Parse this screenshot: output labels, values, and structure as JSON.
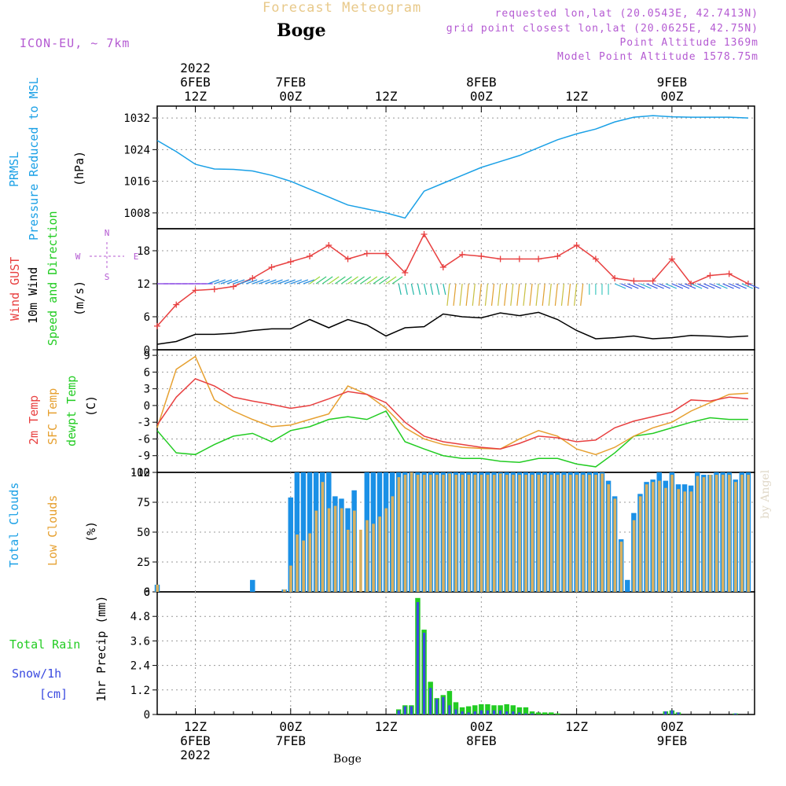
{
  "header": {
    "title": "Forecast Meteogram",
    "station": "Boge",
    "model": "ICON-EU, ~ 7km",
    "requested": "requested lon,lat (20.0543E, 42.7413N)",
    "gridpoint": "grid point closest lon,lat (20.0625E, 42.75N)",
    "point_alt": "Point Altitude 1369m",
    "model_alt": "Model Point Altitude 1578.75m",
    "credit": "by Angel",
    "footer": "Boge"
  },
  "colors": {
    "pressure": "#1aa0e6",
    "gust": "#e84040",
    "wind": "#000000",
    "green": "#22cc22",
    "orange": "#e6a030",
    "total_clouds": "#1a90e6",
    "low_clouds": "#d8b060",
    "snow": "#3a4ae0",
    "purple": "#b45ad2",
    "grid": "#999999"
  },
  "chart_data": [
    {
      "type": "line",
      "id": "pressure",
      "ylabels": [
        "PRMSL",
        "Pressure Reduced to MSL",
        "(hPa)"
      ],
      "yticks": [
        1008,
        1016,
        1024,
        1032
      ],
      "ylim": [
        1004,
        1035
      ],
      "x_hours": [
        0,
        3,
        6,
        9,
        12,
        15,
        18,
        21,
        24,
        27,
        30,
        33,
        36,
        39,
        42,
        45,
        48,
        51,
        54,
        57,
        60,
        63,
        66,
        69,
        72,
        75,
        78,
        81,
        84,
        87,
        90,
        93
      ],
      "series": [
        {
          "values": [
            1026.3,
            1023.5,
            1020.3,
            1019.1,
            1019.0,
            1018.6,
            1017.5,
            1016.0,
            1014.0,
            1012.0,
            1010.0,
            1009.0,
            1008.0,
            1006.7,
            1013.5,
            1015.5,
            1017.5,
            1019.5,
            1021.0,
            1022.5,
            1024.5,
            1026.5,
            1028.0,
            1029.2,
            1031.0,
            1032.2,
            1032.6,
            1032.3,
            1032.2,
            1032.2,
            1032.2,
            1032.0
          ]
        }
      ]
    },
    {
      "type": "line",
      "id": "wind",
      "ylabels": [
        "Wind GUST",
        "10m Wind",
        "Speed and Direction",
        "(m/s)"
      ],
      "compass": {
        "n": "N",
        "s": "S",
        "w": "W",
        "e": "E"
      },
      "yticks": [
        0,
        6,
        12,
        18
      ],
      "ylim": [
        0,
        22
      ],
      "x_hours": [
        0,
        3,
        6,
        9,
        12,
        15,
        18,
        21,
        24,
        27,
        30,
        33,
        36,
        39,
        42,
        45,
        48,
        51,
        54,
        57,
        60,
        63,
        66,
        69,
        72,
        75,
        78,
        81,
        84,
        87,
        90,
        93
      ],
      "series": [
        {
          "name": "Wind GUST",
          "values": [
            4.3,
            8.2,
            10.8,
            11.0,
            11.5,
            13.0,
            15.0,
            16.0,
            17.0,
            19.0,
            16.5,
            17.5,
            17.5,
            14.0,
            21.0,
            15.0,
            17.3,
            17.0,
            16.5,
            16.5,
            16.5,
            17.0,
            19.0,
            16.5,
            13.0,
            12.5,
            12.5,
            16.5,
            12.0,
            13.5,
            13.8,
            12.0
          ]
        },
        {
          "name": "10m Wind",
          "values": [
            1.0,
            1.5,
            2.8,
            2.8,
            3.0,
            3.5,
            3.8,
            3.8,
            5.5,
            4.0,
            5.5,
            4.5,
            2.5,
            4.0,
            4.2,
            6.5,
            6.0,
            5.8,
            6.7,
            6.2,
            6.8,
            5.5,
            3.5,
            2.0,
            2.2,
            2.5,
            2.0,
            2.2,
            2.6,
            2.5,
            2.3,
            2.5
          ]
        }
      ]
    },
    {
      "type": "line",
      "id": "temperature",
      "ylabels": [
        "2m Temp",
        "SFC Temp",
        "dewpt Temp",
        "(C)"
      ],
      "yticks": [
        -12,
        -9,
        -6,
        -3,
        0,
        3,
        6,
        9
      ],
      "ylim": [
        -12,
        10
      ],
      "x_hours": [
        0,
        3,
        6,
        9,
        12,
        15,
        18,
        21,
        24,
        27,
        30,
        33,
        36,
        39,
        42,
        45,
        48,
        51,
        54,
        57,
        60,
        63,
        66,
        69,
        72,
        75,
        78,
        81,
        84,
        87,
        90,
        93
      ],
      "series": [
        {
          "name": "2m Temp",
          "values": [
            -3.5,
            1.5,
            4.8,
            3.5,
            1.5,
            0.8,
            0.2,
            -0.5,
            0.0,
            1.2,
            2.5,
            2.0,
            0.5,
            -3.0,
            -5.5,
            -6.5,
            -7.0,
            -7.5,
            -7.8,
            -6.8,
            -5.5,
            -5.8,
            -6.5,
            -6.2,
            -4.0,
            -2.8,
            -2.0,
            -1.2,
            1.0,
            0.8,
            1.5,
            1.2
          ]
        },
        {
          "name": "SFC Temp",
          "values": [
            -4.0,
            6.5,
            8.8,
            1.0,
            -1.0,
            -2.5,
            -3.8,
            -3.5,
            -2.5,
            -1.5,
            3.5,
            2.0,
            -0.5,
            -4.0,
            -6.0,
            -7.0,
            -7.5,
            -7.7,
            -7.8,
            -6.0,
            -4.5,
            -5.5,
            -7.8,
            -8.8,
            -7.5,
            -5.5,
            -4.0,
            -3.0,
            -1.0,
            0.5,
            2.0,
            2.2
          ]
        },
        {
          "name": "dewpt Temp",
          "values": [
            -4.5,
            -8.5,
            -8.8,
            -7.0,
            -5.5,
            -5.0,
            -6.5,
            -4.5,
            -3.8,
            -2.5,
            -2.0,
            -2.5,
            -1.0,
            -6.5,
            -7.8,
            -9.0,
            -9.5,
            -9.5,
            -10.0,
            -10.2,
            -9.5,
            -9.5,
            -10.5,
            -11.0,
            -8.5,
            -5.5,
            -5.0,
            -4.0,
            -3.0,
            -2.2,
            -2.5,
            -2.5
          ]
        }
      ]
    },
    {
      "type": "bar",
      "id": "clouds",
      "ylabels": [
        "Total Clouds",
        "Low Clouds",
        "(%)"
      ],
      "yticks": [
        0,
        25,
        50,
        75,
        100
      ],
      "ylim": [
        0,
        100
      ],
      "x_hours": [
        0,
        1,
        2,
        3,
        4,
        5,
        6,
        7,
        8,
        9,
        10,
        11,
        12,
        13,
        14,
        15,
        16,
        17,
        18,
        19,
        20,
        21,
        22,
        23,
        24,
        25,
        26,
        27,
        28,
        29,
        30,
        31,
        32,
        33,
        34,
        35,
        36,
        37,
        38,
        39,
        40,
        41,
        42,
        43,
        44,
        45,
        46,
        47,
        48,
        49,
        50,
        51,
        52,
        53,
        54,
        55,
        56,
        57,
        58,
        59,
        60,
        61,
        62,
        63,
        64,
        65,
        66,
        67,
        68,
        69,
        70,
        71,
        72,
        73,
        74,
        75,
        76,
        77,
        78,
        79,
        80,
        81,
        82,
        83,
        84,
        85,
        86,
        87,
        88,
        89,
        90,
        91,
        92,
        93
      ],
      "series": [
        {
          "name": "Total Clouds",
          "values": [
            6,
            0,
            0,
            0,
            0,
            0,
            0,
            0,
            0,
            0,
            0,
            0,
            0,
            0,
            0,
            10,
            0,
            0,
            0,
            0,
            2,
            79,
            100,
            100,
            100,
            100,
            100,
            100,
            80,
            78,
            70,
            85,
            0,
            100,
            100,
            100,
            100,
            100,
            100,
            100,
            100,
            100,
            100,
            100,
            100,
            100,
            100,
            100,
            100,
            100,
            100,
            100,
            100,
            100,
            100,
            100,
            100,
            100,
            100,
            100,
            100,
            100,
            100,
            100,
            100,
            100,
            100,
            100,
            100,
            100,
            100,
            93,
            80,
            44,
            10,
            66,
            82,
            92,
            94,
            100,
            93,
            100,
            90,
            90,
            89,
            100,
            98,
            98,
            100,
            100,
            100,
            94,
            100,
            100
          ]
        },
        {
          "name": "Low Clouds",
          "values": [
            6,
            0,
            0,
            0,
            0,
            0,
            0,
            0,
            0,
            0,
            0,
            0,
            0,
            0,
            0,
            0,
            0,
            0,
            0,
            0,
            2,
            22,
            48,
            43,
            49,
            68,
            92,
            70,
            72,
            70,
            52,
            68,
            52,
            60,
            57,
            63,
            70,
            80,
            96,
            98,
            100,
            98,
            98,
            98,
            98,
            98,
            99,
            98,
            98,
            98,
            98,
            98,
            98,
            98,
            99,
            98,
            98,
            98,
            98,
            98,
            98,
            98,
            98,
            98,
            98,
            98,
            98,
            98,
            98,
            98,
            99,
            90,
            78,
            42,
            0,
            60,
            80,
            90,
            92,
            93,
            87,
            98,
            86,
            84,
            84,
            97,
            96,
            98,
            98,
            98,
            98,
            92,
            98,
            98
          ]
        }
      ]
    },
    {
      "type": "bar",
      "id": "precip",
      "ylabels": [
        "Total  Rain",
        "Snow/1h",
        "[cm]",
        "1hr Precip (mm)"
      ],
      "yticks": [
        0,
        1.2,
        2.4,
        3.6,
        4.8,
        6
      ],
      "ylim": [
        0,
        6
      ],
      "x_hours": [
        0,
        1,
        2,
        3,
        4,
        5,
        6,
        7,
        8,
        9,
        10,
        11,
        12,
        13,
        14,
        15,
        16,
        17,
        18,
        19,
        20,
        21,
        22,
        23,
        24,
        25,
        26,
        27,
        28,
        29,
        30,
        31,
        32,
        33,
        34,
        35,
        36,
        37,
        38,
        39,
        40,
        41,
        42,
        43,
        44,
        45,
        46,
        47,
        48,
        49,
        50,
        51,
        52,
        53,
        54,
        55,
        56,
        57,
        58,
        59,
        60,
        61,
        62,
        63,
        64,
        65,
        66,
        67,
        68,
        69,
        70,
        71,
        72,
        73,
        74,
        75,
        76,
        77,
        78,
        79,
        80,
        81,
        82,
        83,
        84,
        85,
        86,
        87,
        88,
        89,
        90,
        91,
        92,
        93
      ],
      "series": [
        {
          "name": "Total Rain",
          "values": [
            0,
            0,
            0,
            0,
            0,
            0,
            0,
            0,
            0,
            0,
            0,
            0,
            0,
            0,
            0,
            0,
            0,
            0,
            0,
            0,
            0,
            0,
            0,
            0,
            0,
            0,
            0,
            0,
            0,
            0,
            0,
            0,
            0,
            0,
            0,
            0,
            0,
            0,
            0.25,
            0.45,
            0.45,
            5.7,
            4.15,
            1.6,
            0.8,
            0.95,
            1.15,
            0.6,
            0.35,
            0.4,
            0.45,
            0.5,
            0.5,
            0.45,
            0.45,
            0.5,
            0.45,
            0.35,
            0.35,
            0.15,
            0.1,
            0.1,
            0.1,
            0.05,
            0,
            0,
            0,
            0,
            0,
            0,
            0,
            0,
            0,
            0,
            0,
            0,
            0,
            0,
            0,
            0,
            0.15,
            0.2,
            0.1,
            0,
            0,
            0,
            0,
            0,
            0,
            0,
            0,
            0.05,
            0,
            0
          ]
        },
        {
          "name": "Snow/1h",
          "values": [
            0,
            0,
            0,
            0,
            0,
            0,
            0,
            0,
            0,
            0,
            0,
            0,
            0,
            0,
            0,
            0,
            0,
            0,
            0,
            0,
            0,
            0,
            0,
            0,
            0,
            0,
            0,
            0,
            0,
            0,
            0,
            0,
            0,
            0,
            0,
            0,
            0,
            0,
            0.2,
            0.4,
            0.4,
            5.5,
            4.0,
            1.3,
            0.75,
            0.85,
            0.45,
            0.25,
            0.15,
            0.1,
            0.15,
            0.2,
            0.2,
            0.2,
            0.2,
            0.15,
            0.15,
            0.1,
            0.05,
            0.05,
            0,
            0,
            0,
            0,
            0,
            0,
            0,
            0,
            0,
            0,
            0,
            0,
            0,
            0,
            0,
            0,
            0,
            0,
            0,
            0,
            0.15,
            0.2,
            0.1,
            0,
            0,
            0,
            0,
            0,
            0,
            0,
            0,
            0.05,
            0,
            0
          ]
        }
      ]
    }
  ],
  "x_axis": {
    "top_ticks": [
      {
        "h": 6,
        "l1": "2022",
        "l2": "6FEB",
        "l3": "12Z"
      },
      {
        "h": 21,
        "l1": "",
        "l2": "7FEB",
        "l3": "00Z"
      },
      {
        "h": 36,
        "l1": "",
        "l2": "",
        "l3": "12Z"
      },
      {
        "h": 51,
        "l1": "",
        "l2": "8FEB",
        "l3": "00Z"
      },
      {
        "h": 66,
        "l1": "",
        "l2": "",
        "l3": "12Z"
      },
      {
        "h": 81,
        "l1": "",
        "l2": "9FEB",
        "l3": "00Z"
      }
    ],
    "bottom_ticks": [
      {
        "h": 6,
        "l1": "12Z",
        "l2": "6FEB",
        "l3": "2022"
      },
      {
        "h": 21,
        "l1": "00Z",
        "l2": "7FEB",
        "l3": ""
      },
      {
        "h": 36,
        "l1": "12Z",
        "l2": "",
        "l3": ""
      },
      {
        "h": 51,
        "l1": "00Z",
        "l2": "8FEB",
        "l3": ""
      },
      {
        "h": 66,
        "l1": "12Z",
        "l2": "",
        "l3": ""
      },
      {
        "h": 81,
        "l1": "00Z",
        "l2": "9FEB",
        "l3": ""
      }
    ]
  }
}
